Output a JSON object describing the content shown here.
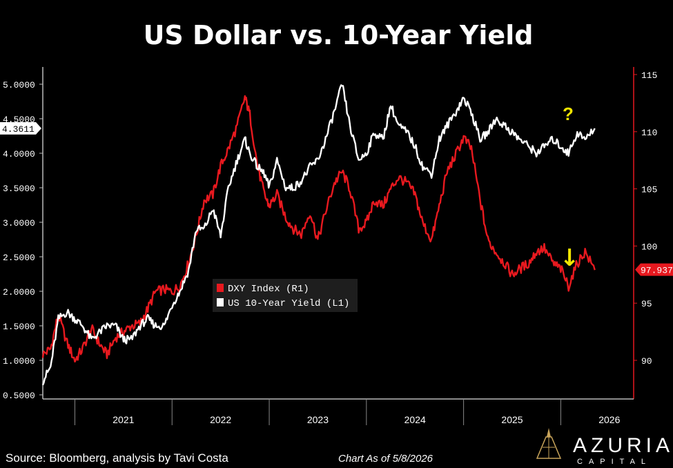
{
  "chart_data": {
    "type": "line",
    "title": "US Dollar vs. 10-Year Yield",
    "x_labels": [
      "2021",
      "2022",
      "2023",
      "2024",
      "2025",
      "2026"
    ],
    "x_range": [
      2020.67,
      2026.75
    ],
    "y_left": {
      "ticks": [
        "0.5000",
        "1.0000",
        "1.5000",
        "2.0000",
        "2.5000",
        "3.0000",
        "3.5000",
        "4.0000",
        "4.5000",
        "5.0000"
      ],
      "range": [
        0.5,
        5.0
      ],
      "last_value_label": "4.3611",
      "last_value": 4.3611
    },
    "y_right": {
      "ticks": [
        "90",
        "95",
        "100",
        "105",
        "110",
        "115"
      ],
      "range": [
        87.5,
        115
      ],
      "color": "#e8191f",
      "last_value_label": "97.937",
      "last_value": 97.937
    },
    "legend": [
      {
        "name": "DXY Index (R1)",
        "color": "#e8191f"
      },
      {
        "name": "US 10-Year Yield (L1)",
        "color": "#ffffff"
      }
    ],
    "series": [
      {
        "name": "DXY Index (R1)",
        "axis": "right",
        "color": "#e8191f",
        "x": [
          2020.67,
          2020.75,
          2020.83,
          2020.92,
          2021.0,
          2021.08,
          2021.17,
          2021.25,
          2021.33,
          2021.42,
          2021.5,
          2021.58,
          2021.67,
          2021.75,
          2021.83,
          2021.92,
          2022.0,
          2022.08,
          2022.17,
          2022.25,
          2022.33,
          2022.42,
          2022.5,
          2022.58,
          2022.67,
          2022.75,
          2022.8,
          2022.88,
          2022.95,
          2023.0,
          2023.08,
          2023.17,
          2023.25,
          2023.33,
          2023.42,
          2023.5,
          2023.58,
          2023.67,
          2023.75,
          2023.83,
          2023.92,
          2024.0,
          2024.08,
          2024.17,
          2024.25,
          2024.33,
          2024.42,
          2024.5,
          2024.58,
          2024.67,
          2024.75,
          2024.83,
          2024.92,
          2025.0,
          2025.08,
          2025.17,
          2025.25,
          2025.33,
          2025.42,
          2025.5,
          2025.58,
          2025.67,
          2025.75,
          2025.83,
          2025.92,
          2026.0,
          2026.08,
          2026.17,
          2026.25,
          2026.35
        ],
        "values": [
          90.5,
          91.0,
          94.0,
          91.5,
          90.0,
          91.0,
          92.8,
          91.5,
          90.5,
          92.0,
          92.5,
          93.0,
          93.2,
          94.5,
          96.0,
          96.2,
          96.0,
          96.5,
          98.5,
          101.0,
          104.0,
          104.5,
          107.0,
          108.5,
          110.5,
          113.0,
          111.5,
          107.0,
          104.5,
          103.5,
          104.5,
          102.5,
          101.5,
          101.0,
          103.0,
          100.5,
          103.0,
          105.5,
          106.5,
          105.0,
          101.5,
          102.0,
          104.0,
          103.5,
          105.0,
          106.0,
          105.5,
          104.5,
          102.0,
          100.5,
          103.5,
          106.5,
          108.0,
          109.5,
          108.5,
          104.0,
          100.5,
          99.5,
          98.5,
          97.5,
          98.0,
          98.5,
          99.5,
          99.8,
          98.5,
          98.0,
          96.5,
          98.5,
          99.5,
          97.9
        ]
      },
      {
        "name": "US 10-Year Yield (L1)",
        "axis": "left",
        "color": "#ffffff",
        "x": [
          2020.67,
          2020.75,
          2020.83,
          2020.92,
          2021.0,
          2021.08,
          2021.17,
          2021.25,
          2021.33,
          2021.42,
          2021.5,
          2021.58,
          2021.67,
          2021.75,
          2021.83,
          2021.92,
          2022.0,
          2022.08,
          2022.17,
          2022.25,
          2022.33,
          2022.42,
          2022.5,
          2022.58,
          2022.67,
          2022.75,
          2022.8,
          2022.88,
          2022.95,
          2023.0,
          2023.08,
          2023.17,
          2023.25,
          2023.33,
          2023.42,
          2023.5,
          2023.58,
          2023.67,
          2023.75,
          2023.83,
          2023.92,
          2024.0,
          2024.08,
          2024.17,
          2024.25,
          2024.33,
          2024.42,
          2024.5,
          2024.58,
          2024.67,
          2024.75,
          2024.83,
          2024.92,
          2025.0,
          2025.08,
          2025.17,
          2025.25,
          2025.33,
          2025.42,
          2025.5,
          2025.58,
          2025.67,
          2025.75,
          2025.83,
          2025.92,
          2026.0,
          2026.08,
          2026.17,
          2026.25,
          2026.35
        ],
        "values": [
          0.7,
          0.9,
          1.6,
          1.7,
          1.6,
          1.5,
          1.3,
          1.4,
          1.5,
          1.5,
          1.3,
          1.3,
          1.5,
          1.6,
          1.5,
          1.5,
          1.8,
          2.0,
          2.3,
          2.9,
          2.9,
          3.2,
          2.8,
          3.5,
          3.9,
          4.2,
          4.0,
          3.8,
          3.7,
          3.5,
          3.9,
          3.5,
          3.5,
          3.6,
          3.8,
          3.9,
          4.2,
          4.6,
          5.0,
          4.4,
          3.9,
          4.0,
          4.3,
          4.2,
          4.7,
          4.4,
          4.3,
          4.1,
          3.8,
          3.7,
          4.2,
          4.4,
          4.6,
          4.8,
          4.6,
          4.2,
          4.3,
          4.5,
          4.4,
          4.3,
          4.2,
          4.1,
          4.0,
          4.1,
          4.2,
          4.1,
          4.0,
          4.3,
          4.2,
          4.36
        ]
      }
    ],
    "annotations": [
      {
        "text": "?",
        "color": "#f2e600"
      },
      {
        "text": "↓",
        "color": "#f2e600"
      }
    ]
  },
  "footer": {
    "source": "Source: Bloomberg, analysis by Tavi Costa",
    "as_of": "Chart As of 5/8/2026"
  },
  "logo": {
    "name": "AZURIA",
    "sub": "CAPITAL",
    "icon": "tower-icon"
  }
}
